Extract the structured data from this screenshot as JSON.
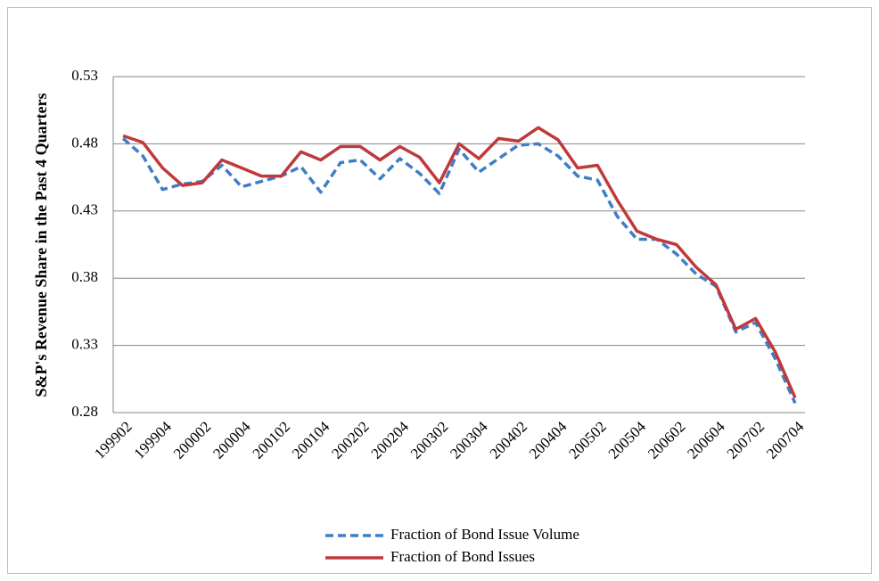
{
  "chart_data": {
    "type": "line",
    "y_label": "S&P's Revenue Share in the Past 4 Quarters",
    "categories": [
      "199902",
      null,
      "199904",
      null,
      "200002",
      null,
      "200004",
      null,
      "200102",
      null,
      "200104",
      null,
      "200202",
      null,
      "200204",
      null,
      "200302",
      null,
      "200304",
      null,
      "200402",
      null,
      "200404",
      null,
      "200502",
      null,
      "200504",
      null,
      "200602",
      null,
      "200604",
      null,
      "200702",
      null,
      "200704"
    ],
    "series": [
      {
        "name": "Fraction of Bond Issue Volume",
        "color": "#3f7ec6",
        "dash": true,
        "values": [
          0.484,
          0.471,
          0.446,
          0.45,
          0.452,
          0.464,
          0.448,
          0.452,
          0.456,
          0.463,
          0.444,
          0.466,
          0.468,
          0.454,
          0.469,
          0.458,
          0.443,
          0.476,
          0.459,
          0.469,
          0.479,
          0.48,
          0.471,
          0.456,
          0.453,
          0.426,
          0.409,
          0.409,
          0.398,
          0.383,
          0.374,
          0.34,
          0.347,
          0.32,
          0.287
        ]
      },
      {
        "name": "Fraction of Bond Issues",
        "color": "#c0393b",
        "dash": false,
        "values": [
          0.486,
          0.481,
          0.462,
          0.449,
          0.451,
          0.468,
          0.462,
          0.456,
          0.456,
          0.474,
          0.468,
          0.478,
          0.478,
          0.468,
          0.478,
          0.47,
          0.451,
          0.48,
          0.469,
          0.484,
          0.482,
          0.492,
          0.483,
          0.462,
          0.464,
          0.438,
          0.415,
          0.409,
          0.405,
          0.388,
          0.375,
          0.342,
          0.35,
          0.325,
          0.291
        ]
      }
    ],
    "ylim": [
      0.28,
      0.53
    ],
    "yticks": [
      0.28,
      0.33,
      0.38,
      0.43,
      0.48,
      0.53
    ],
    "grid": true
  }
}
